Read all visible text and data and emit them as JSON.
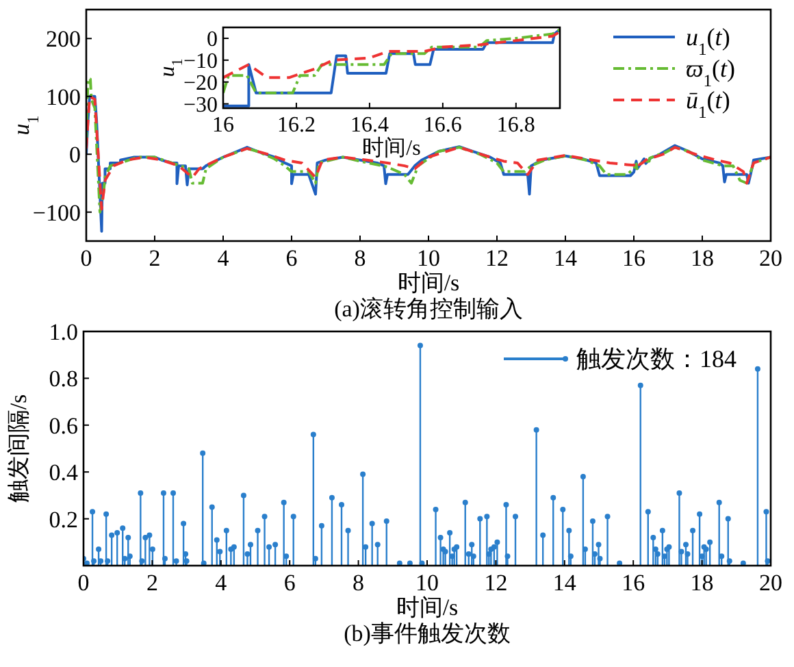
{
  "chart_data": [
    {
      "type": "line",
      "title": "(a)滚转角控制输入",
      "xlabel": "时间/s",
      "ylabel": "*u*$_{1}$",
      "xlim": [
        0,
        20
      ],
      "ylim": [
        -150,
        250
      ],
      "xticks": [
        0,
        2,
        4,
        6,
        8,
        10,
        12,
        14,
        16,
        18,
        20
      ],
      "yticks": [
        {
          "value": -100,
          "label": "−100"
        },
        0,
        100,
        200
      ],
      "legend": "top right",
      "series": [
        {
          "name": "*u*$_{1}$(*t*)",
          "color": "#1f5fbf",
          "line_style": "solid",
          "x": [
            0,
            0.05,
            0.1,
            0.25,
            0.3,
            0.45,
            0.47,
            0.55,
            0.55,
            0.7,
            0.7,
            1.0,
            1.0,
            1.4,
            2.0,
            2.2,
            2.5,
            2.65,
            2.65,
            2.7,
            2.9,
            2.95,
            3.0,
            3.4,
            3.5,
            4.0,
            4.7,
            5.0,
            5.5,
            5.8,
            6.0,
            6.0,
            6.05,
            6.5,
            6.7,
            6.75,
            7.0,
            7.5,
            8.0,
            8.5,
            8.7,
            8.75,
            8.8,
            9.4,
            9.6,
            9.8,
            10.3,
            10.9,
            11.3,
            11.8,
            12.1,
            12.2,
            12.7,
            12.9,
            12.95,
            13.0,
            13.3,
            14.0,
            14.5,
            14.9,
            15.0,
            15.9,
            16.0,
            16.07,
            16.1,
            16.3,
            16.35,
            16.5,
            16.7,
            17.2,
            17.6,
            18.0,
            18.5,
            18.6,
            18.65,
            18.7,
            19.3,
            19.35,
            19.45,
            19.5,
            20.0
          ],
          "values": [
            0,
            60,
            100,
            100,
            60,
            -133,
            -50,
            -50,
            -25,
            -25,
            -15,
            -15,
            -10,
            -5,
            -5,
            -10,
            -15,
            -15,
            -51,
            -20,
            -20,
            -53,
            -25,
            -25,
            -20,
            -5,
            12,
            5,
            -5,
            -15,
            -20,
            -51,
            -35,
            -35,
            -69,
            -15,
            -10,
            -5,
            -10,
            -15,
            -20,
            -51,
            -35,
            -35,
            -20,
            -10,
            5,
            13,
            5,
            -5,
            -15,
            -35,
            -35,
            -35,
            -69,
            -20,
            -10,
            -3,
            -8,
            -15,
            -37,
            -37,
            -31,
            -12,
            -25,
            -8,
            -16,
            -6,
            -2,
            15,
            5,
            -8,
            -15,
            -20,
            -48,
            -35,
            -35,
            -50,
            -25,
            -10,
            -5
          ]
        },
        {
          "name": "*ϖ*$_{1}$(*t*)",
          "color": "#66bb33",
          "line_style": "dashdot",
          "x": [
            0,
            0.05,
            0.12,
            0.15,
            0.25,
            0.4,
            0.5,
            0.55,
            0.7,
            1.0,
            1.5,
            2.0,
            2.5,
            3.0,
            3.1,
            3.4,
            3.5,
            4.0,
            4.7,
            5.0,
            5.5,
            5.8,
            6.0,
            6.5,
            6.7,
            6.8,
            7.5,
            8.0,
            8.5,
            8.8,
            9.3,
            9.5,
            9.7,
            10.3,
            10.9,
            11.5,
            12.0,
            12.2,
            12.8,
            13.0,
            13.4,
            14.0,
            14.6,
            15.0,
            15.2,
            15.8,
            16.0,
            16.07,
            16.09,
            16.2,
            16.26,
            16.45,
            16.46,
            16.58,
            16.8,
            16.92,
            17.2,
            17.6,
            18.0,
            18.6,
            18.9,
            19.1,
            19.3,
            19.5,
            20.0
          ],
          "values": [
            20,
            130,
            130,
            95,
            80,
            -100,
            -70,
            -40,
            -20,
            -15,
            -5,
            -5,
            -15,
            -25,
            -50,
            -50,
            -25,
            -5,
            10,
            5,
            -8,
            -20,
            -30,
            -30,
            -50,
            -15,
            -5,
            -12,
            -18,
            -22,
            -35,
            -50,
            -20,
            5,
            12,
            0,
            -15,
            -30,
            -30,
            -20,
            -10,
            -3,
            -10,
            -20,
            -35,
            -35,
            -25,
            -17,
            -25,
            -17,
            -12,
            -12,
            -7,
            -4,
            1,
            3,
            12,
            5,
            -10,
            -20,
            -20,
            -45,
            -50,
            -15,
            -5
          ]
        },
        {
          "name": "*ū*$_{1}$(*t*)",
          "color": "#ee3333",
          "line_style": "dashed",
          "x": [
            0,
            0.1,
            0.25,
            0.45,
            0.55,
            0.8,
            1.2,
            1.7,
            2.2,
            2.7,
            3.1,
            3.3,
            4.0,
            4.7,
            5.3,
            5.8,
            6.3,
            6.7,
            6.9,
            7.5,
            8.2,
            8.8,
            9.3,
            9.6,
            10.0,
            10.9,
            11.8,
            12.2,
            12.6,
            12.9,
            13.2,
            14.0,
            14.8,
            15.3,
            15.8,
            16.0,
            16.07,
            16.15,
            16.25,
            16.35,
            16.45,
            16.55,
            16.7,
            16.9,
            17.2,
            17.8,
            18.4,
            18.8,
            19.2,
            19.3,
            19.5,
            20.0
          ],
          "values": [
            10,
            100,
            95,
            -95,
            -45,
            -20,
            -10,
            -5,
            -10,
            -20,
            -40,
            -25,
            -5,
            10,
            0,
            -10,
            -15,
            -40,
            -10,
            -5,
            -10,
            -15,
            -20,
            -25,
            -5,
            12,
            -5,
            -12,
            -15,
            -35,
            -10,
            -2,
            -10,
            -15,
            -18,
            -19,
            -12,
            -18,
            -15,
            -10,
            -7,
            -6,
            -3,
            1,
            12,
            0,
            -10,
            -15,
            -30,
            -50,
            -15,
            -5
          ]
        }
      ]
    },
    {
      "type": "line",
      "xlabel": "时间/s",
      "ylabel": "*u*$_{1}$",
      "xlim": [
        16,
        16.92
      ],
      "ylim": [
        -32,
        5
      ],
      "xticks": [
        16,
        16.2,
        16.4,
        16.6,
        16.8
      ],
      "yticks": [
        {
          "value": -30,
          "label": "−30"
        },
        {
          "value": -20,
          "label": "−20"
        },
        {
          "value": -10,
          "label": "−10"
        },
        0
      ],
      "series": [
        {
          "color": "#1f5fbf",
          "line_style": "solid",
          "x": [
            16,
            16.07,
            16.07,
            16.09,
            16.295,
            16.31,
            16.335,
            16.34,
            16.445,
            16.455,
            16.52,
            16.525,
            16.565,
            16.575,
            16.71,
            16.72,
            16.9,
            16.905,
            16.92
          ],
          "values": [
            -31,
            -31,
            -12,
            -25,
            -25,
            -8,
            -8,
            -16,
            -16,
            -7,
            -7,
            -12,
            -12,
            -5,
            -5,
            -2,
            -2,
            2,
            4
          ]
        },
        {
          "color": "#66bb33",
          "line_style": "dashdot",
          "x": [
            16,
            16.015,
            16.065,
            16.09,
            16.19,
            16.21,
            16.25,
            16.27,
            16.44,
            16.46,
            16.55,
            16.57,
            16.7,
            16.72,
            16.8,
            16.9,
            16.92
          ],
          "values": [
            -25,
            -17,
            -17,
            -25,
            -25,
            -17,
            -17,
            -12,
            -12,
            -7,
            -7,
            -4,
            -4,
            -1,
            0,
            2,
            4
          ]
        },
        {
          "color": "#ee3333",
          "line_style": "dashed",
          "x": [
            16,
            16.07,
            16.12,
            16.18,
            16.25,
            16.3,
            16.4,
            16.45,
            16.55,
            16.6,
            16.7,
            16.8,
            16.9,
            16.92
          ],
          "values": [
            -18,
            -12,
            -18,
            -18,
            -14,
            -10,
            -9,
            -6,
            -6,
            -4,
            -3,
            -1,
            1,
            3
          ]
        }
      ]
    },
    {
      "type": "lollipop",
      "title": "(b)事件触发次数",
      "xlabel": "时间/s",
      "ylabel": "触发间隔/s",
      "xlim": [
        0,
        20
      ],
      "ylim": [
        0,
        1
      ],
      "xticks": [
        0,
        2,
        4,
        6,
        8,
        10,
        12,
        14,
        16,
        18,
        20
      ],
      "yticks": [
        0.2,
        0.4,
        0.6,
        0.8,
        {
          "value": 1,
          "label": "1.0"
        }
      ],
      "legend": "top right",
      "marker": "circle",
      "series": [
        {
          "name": "触发次数：184",
          "color": "#2a7fcc",
          "x": [
            0.0,
            0.1,
            0.26,
            0.3,
            0.44,
            0.5,
            0.66,
            0.7,
            0.82,
            0.98,
            1.14,
            1.2,
            1.3,
            1.35,
            1.66,
            1.7,
            1.8,
            1.92,
            2.01,
            2.33,
            2.37,
            2.61,
            2.7,
            2.91,
            2.97,
            3.0,
            3.47,
            3.5,
            3.74,
            3.88,
            3.97,
            4.16,
            4.29,
            4.38,
            4.66,
            4.77,
            4.86,
            5.07,
            5.27,
            5.4,
            5.58,
            5.83,
            5.9,
            6.11,
            6.69,
            6.75,
            6.93,
            7.23,
            7.51,
            7.7,
            8.13,
            8.21,
            8.4,
            8.56,
            8.82,
            9.2,
            9.5,
            9.8,
            9.85,
            10.25,
            10.39,
            10.47,
            10.53,
            10.66,
            10.73,
            10.79,
            10.86,
            11.11,
            11.21,
            11.3,
            11.35,
            11.54,
            11.74,
            11.8,
            11.86,
            11.95,
            12.04,
            12.3,
            12.34,
            12.57,
            13.18,
            13.37,
            13.67,
            13.95,
            14.13,
            14.18,
            14.54,
            14.6,
            14.82,
            14.88,
            14.99,
            15.03,
            15.25,
            15.6,
            16.21,
            16.43,
            16.58,
            16.65,
            16.71,
            16.85,
            16.91,
            16.98,
            17.04,
            17.34,
            17.4,
            17.53,
            17.58,
            17.73,
            17.93,
            18.0,
            18.06,
            18.12,
            18.23,
            18.5,
            18.57,
            18.76,
            18.8,
            19.2,
            19.62,
            19.87,
            19.91
          ],
          "values": [
            0.03,
            0.01,
            0.23,
            0.02,
            0.07,
            0.02,
            0.22,
            0.02,
            0.13,
            0.14,
            0.16,
            0.03,
            0.12,
            0.04,
            0.31,
            0.02,
            0.12,
            0.13,
            0.07,
            0.31,
            0.03,
            0.31,
            0.02,
            0.18,
            0.05,
            0.02,
            0.48,
            0.01,
            0.25,
            0.11,
            0.06,
            0.15,
            0.07,
            0.08,
            0.3,
            0.05,
            0.09,
            0.15,
            0.21,
            0.08,
            0.09,
            0.27,
            0.04,
            0.21,
            0.56,
            0.03,
            0.17,
            0.29,
            0.26,
            0.15,
            0.39,
            0.08,
            0.18,
            0.09,
            0.19,
            0.01,
            0.01,
            0.94,
            0.01,
            0.24,
            0.12,
            0.07,
            0.06,
            0.14,
            0.04,
            0.07,
            0.08,
            0.27,
            0.05,
            0.09,
            0.04,
            0.2,
            0.21,
            0.05,
            0.07,
            0.08,
            0.1,
            0.26,
            0.04,
            0.21,
            0.58,
            0.13,
            0.29,
            0.24,
            0.15,
            0.04,
            0.38,
            0.07,
            0.19,
            0.05,
            0.09,
            0.03,
            0.21,
            0.01,
            0.77,
            0.23,
            0.12,
            0.07,
            0.05,
            0.15,
            0.04,
            0.07,
            0.08,
            0.31,
            0.06,
            0.09,
            0.05,
            0.15,
            0.22,
            0.04,
            0.08,
            0.07,
            0.1,
            0.27,
            0.04,
            0.2,
            0.02,
            0.01,
            0.84,
            0.23,
            0.02
          ]
        }
      ]
    }
  ]
}
